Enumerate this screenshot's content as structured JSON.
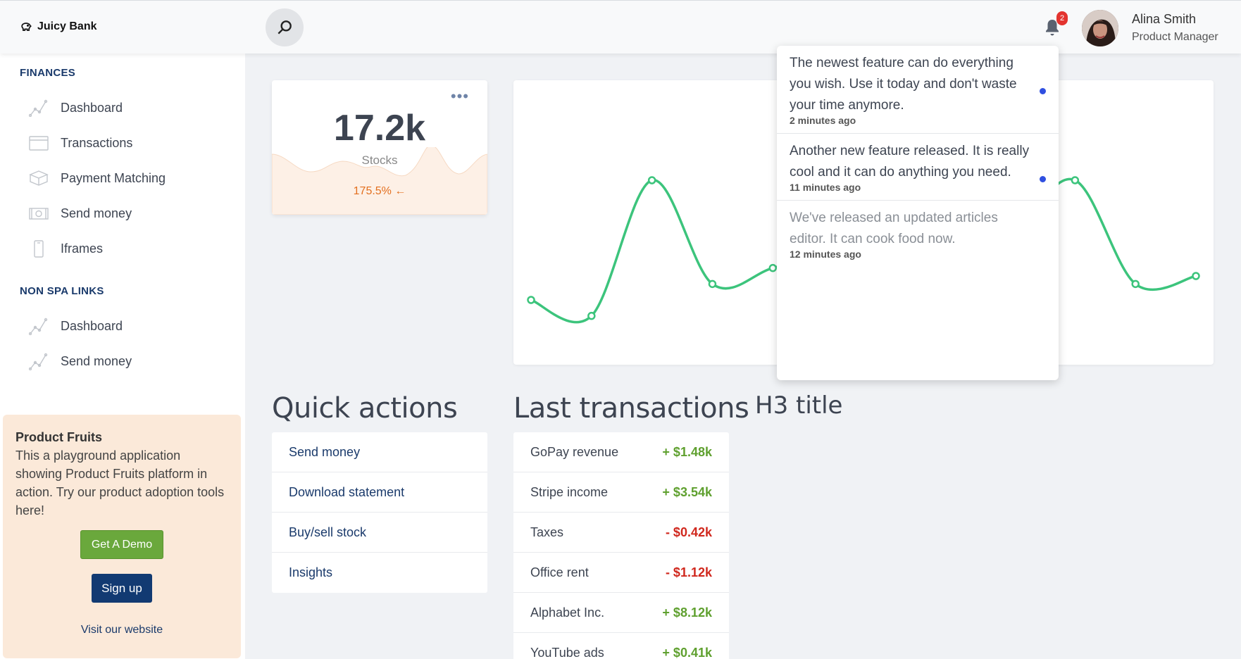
{
  "header": {
    "brand": "Juicy Bank",
    "notification_count": "2",
    "user_name": "Alina Smith",
    "user_role": "Product Manager"
  },
  "sidebar": {
    "finances_title": "FINANCES",
    "finances_items": [
      {
        "label": "Dashboard",
        "icon": "chart-line-icon"
      },
      {
        "label": "Transactions",
        "icon": "card-icon"
      },
      {
        "label": "Payment Matching",
        "icon": "box-icon"
      },
      {
        "label": "Send money",
        "icon": "money-icon"
      },
      {
        "label": "Iframes",
        "icon": "phone-icon"
      }
    ],
    "nonspa_title": "NON SPA LINKS",
    "nonspa_items": [
      {
        "label": "Dashboard",
        "icon": "chart-line-icon"
      },
      {
        "label": "Send money",
        "icon": "chart-line-icon"
      }
    ]
  },
  "promo": {
    "title": "Product Fruits",
    "text": "This a playground application showing Product Fruits platform in action. Try our product adoption tools here!",
    "demo_button": "Get A Demo",
    "signup_button": "Sign up",
    "website_link": "Visit our website"
  },
  "stat": {
    "value": "17.2k",
    "label": "Stocks",
    "change": "175.5%",
    "menu": "•••"
  },
  "chart_data": {
    "type": "line",
    "color": "#3cc47c",
    "values": [
      6,
      4,
      21,
      8,
      10,
      12,
      13,
      14,
      15,
      21,
      8,
      9
    ],
    "ylim": [
      0,
      30
    ]
  },
  "quick_actions": {
    "title": "Quick actions",
    "items": [
      "Send money",
      "Download statement",
      "Buy/sell stock",
      "Insights"
    ]
  },
  "transactions": {
    "title": "Last transactions",
    "rows": [
      {
        "name": "GoPay revenue",
        "amount": "+ $1.48k",
        "sign": "pos"
      },
      {
        "name": "Stripe income",
        "amount": "+ $3.54k",
        "sign": "pos"
      },
      {
        "name": "Taxes",
        "amount": "- $0.42k",
        "sign": "neg"
      },
      {
        "name": "Office rent",
        "amount": "- $1.12k",
        "sign": "neg"
      },
      {
        "name": "Alphabet Inc.",
        "amount": "+ $8.12k",
        "sign": "pos"
      },
      {
        "name": "YouTube ads",
        "amount": "+ $0.41k",
        "sign": "pos"
      }
    ]
  },
  "h3_title": "H3 title",
  "notifications": [
    {
      "text": "The newest feature can do everything you wish. Use it today and don't waste your time anymore.",
      "time": "2 minutes ago",
      "unread": true
    },
    {
      "text": "Another new feature released. It is really cool and it can do anything you need.",
      "time": "11 minutes ago",
      "unread": true
    },
    {
      "text": "We've released an updated articles editor. It can cook food now.",
      "time": "12 minutes ago",
      "unread": false
    }
  ]
}
